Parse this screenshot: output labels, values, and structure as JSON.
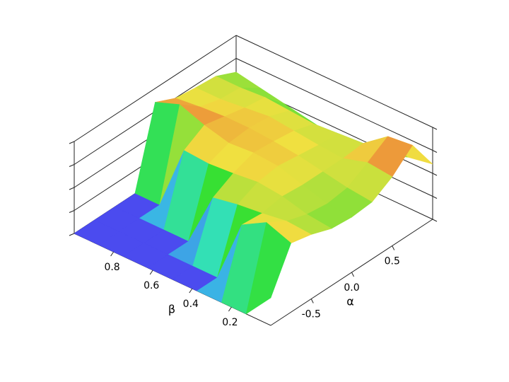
{
  "chart_data": {
    "type": "surface",
    "xlabel": "α",
    "ylabel": "β",
    "x": [
      -1,
      -0.75,
      -0.5,
      -0.25,
      0,
      0.25,
      0.5,
      0.75,
      1
    ],
    "y": [
      0,
      0.125,
      0.25,
      0.375,
      0.5,
      0.625,
      0.75,
      0.875,
      1
    ],
    "z": [
      [
        0.3,
        0.75,
        0.7,
        0.62,
        0.6,
        0.62,
        0.75,
        0.95,
        0.6
      ],
      [
        0,
        0.85,
        0.72,
        0.65,
        0.62,
        0.65,
        0.78,
        0.92,
        0.55
      ],
      [
        0,
        0.7,
        0.68,
        0.72,
        0.7,
        0.7,
        0.7,
        0.72,
        0.45
      ],
      [
        0,
        0,
        0.65,
        0.75,
        0.78,
        0.75,
        0.72,
        0.7,
        0.4
      ],
      [
        0,
        0,
        0.6,
        0.72,
        0.8,
        0.78,
        0.75,
        0.68,
        0.4
      ],
      [
        0,
        0,
        0,
        0.7,
        0.78,
        0.8,
        0.78,
        0.7,
        0.45
      ],
      [
        0,
        0,
        0,
        0.72,
        0.85,
        0.8,
        0.75,
        0.72,
        0.5
      ],
      [
        0,
        0,
        0,
        0,
        0.95,
        0.78,
        0.72,
        0.7,
        0.55
      ],
      [
        0,
        0,
        0,
        0,
        0.85,
        0.75,
        0.72,
        0.7,
        0.6
      ]
    ],
    "xlim": [
      -1,
      1
    ],
    "ylim": [
      0,
      1
    ],
    "zlim": [
      0,
      1
    ],
    "xticks": [
      -0.5,
      {
        "value": 0,
        "label": "0.0"
      },
      0.5
    ],
    "yticks": [
      0.2,
      0.4,
      0.6,
      0.8
    ],
    "zticks": [
      0,
      0.25,
      0.5,
      0.75,
      1
    ],
    "colormap": [
      "#4b4bef",
      "#33e0e0",
      "#33e033",
      "#f0e040",
      "#e83030"
    ]
  }
}
